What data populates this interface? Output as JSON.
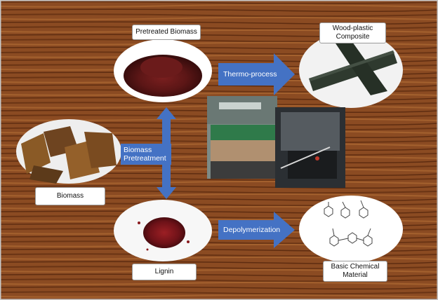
{
  "labels": {
    "pretreated_biomass": "Pretreated Biomass",
    "wood_plastic_composite": "Wood-plastic\nComposite",
    "biomass": "Biomass",
    "lignin": "Lignin",
    "basic_chemical_material": "Basic Chemical\nMaterial"
  },
  "arrows": {
    "thermo_process": "Thermo-process",
    "biomass_pretreatment": "Biomass\nPretreatment",
    "depolymerization": "Depolymerization"
  },
  "colors": {
    "arrow_fill": "#4472c4",
    "wood_base": "#8a4a22",
    "wood_grain": "#5e2c10"
  }
}
